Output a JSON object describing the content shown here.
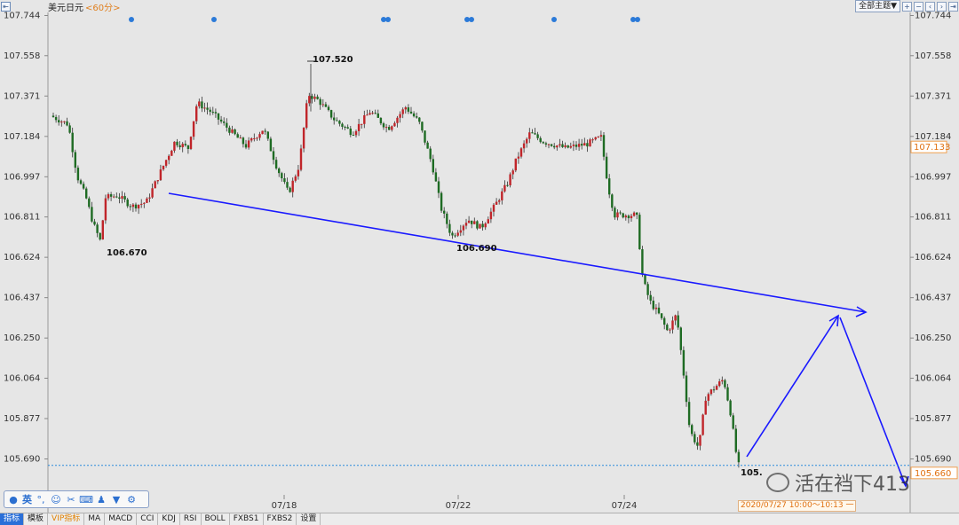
{
  "header": {
    "symbol": "美元日元",
    "period": "<60分>",
    "theme_button": "全部主题▼"
  },
  "chart_data": {
    "type": "candlestick",
    "y_ticks": [
      "107.744",
      "107.558",
      "107.371",
      "107.184",
      "106.997",
      "106.811",
      "106.624",
      "106.437",
      "106.250",
      "106.064",
      "105.877",
      "105.690"
    ],
    "ylim": [
      105.55,
      107.8
    ],
    "x_labels": [
      "07/18",
      "07/22",
      "07/24"
    ],
    "current_price": "107.133",
    "last_price": "105.660",
    "annotations": [
      "107.520",
      "106.670",
      "106.690",
      "105."
    ],
    "time_tip": "2020/07/27 10:00～10:13 一",
    "colors": {
      "up": "#c0252a",
      "down": "#1e6b23",
      "trend": "#1a1aff",
      "grid": "#2a8adc"
    }
  },
  "toolbar_panel": {
    "ime": "英"
  },
  "watermark": "活在裆下413",
  "bottom_tabs": [
    "指标",
    "模板",
    "VIP指标",
    "MA",
    "MACD",
    "CCI",
    "KDJ",
    "RSI",
    "BOLL",
    "FXBS1",
    "FXBS2",
    "设置"
  ]
}
